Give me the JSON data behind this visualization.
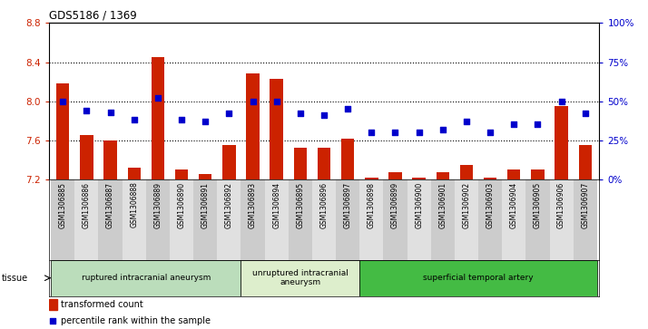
{
  "title": "GDS5186 / 1369",
  "samples": [
    "GSM1306885",
    "GSM1306886",
    "GSM1306887",
    "GSM1306888",
    "GSM1306889",
    "GSM1306890",
    "GSM1306891",
    "GSM1306892",
    "GSM1306893",
    "GSM1306894",
    "GSM1306895",
    "GSM1306896",
    "GSM1306897",
    "GSM1306898",
    "GSM1306899",
    "GSM1306900",
    "GSM1306901",
    "GSM1306902",
    "GSM1306903",
    "GSM1306904",
    "GSM1306905",
    "GSM1306906",
    "GSM1306907"
  ],
  "bar_values": [
    8.18,
    7.65,
    7.6,
    7.32,
    8.45,
    7.3,
    7.25,
    7.55,
    8.28,
    8.23,
    7.52,
    7.52,
    7.62,
    7.22,
    7.27,
    7.22,
    7.27,
    7.35,
    7.22,
    7.3,
    7.3,
    7.95,
    7.55
  ],
  "percentile_values": [
    50,
    44,
    43,
    38,
    52,
    38,
    37,
    42,
    50,
    50,
    42,
    41,
    45,
    30,
    30,
    30,
    32,
    37,
    30,
    35,
    35,
    50,
    42
  ],
  "ylim_left": [
    7.2,
    8.8
  ],
  "ylim_right": [
    0,
    100
  ],
  "yticks_left": [
    7.2,
    7.6,
    8.0,
    8.4,
    8.8
  ],
  "yticks_right": [
    0,
    25,
    50,
    75,
    100
  ],
  "ytick_labels_right": [
    "0%",
    "25%",
    "50%",
    "75%",
    "100%"
  ],
  "bar_color": "#CC2200",
  "dot_color": "#0000CC",
  "tissue_groups": [
    {
      "label": "ruptured intracranial aneurysm",
      "start": 0,
      "end": 8,
      "color": "#bbddbb"
    },
    {
      "label": "unruptured intracranial\naneurysm",
      "start": 8,
      "end": 13,
      "color": "#ddeecc"
    },
    {
      "label": "superficial temporal artery",
      "start": 13,
      "end": 23,
      "color": "#44bb44"
    }
  ],
  "legend_bar_label": "transformed count",
  "legend_dot_label": "percentile rank within the sample"
}
